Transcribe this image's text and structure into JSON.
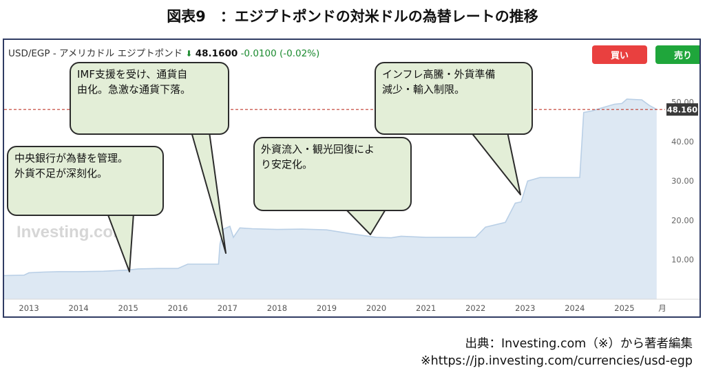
{
  "figure_title": "図表9　：エジプトポンドの対米ドルの為替レートの推移",
  "header": {
    "pair": "USD/EGP - アメリカドル エジプトポンド",
    "price": "48.1600",
    "change": "-0.0100 (-0.02%)",
    "direction": "down"
  },
  "buttons": {
    "buy": "買い",
    "sell": "売り"
  },
  "watermark": "Investing.com",
  "callouts": [
    {
      "text": "中央銀行が為替を管理。\n外貨不足が深刻化。"
    },
    {
      "text": "IMF支援を受け、通貨自\n由化。急激な通貨下落。"
    },
    {
      "text": "外資流入・観光回復によ\nり安定化。"
    },
    {
      "text": "インフレ高騰・外貨準備\n減少・輸入制限。"
    }
  ],
  "source": {
    "line1": "出典：Investing.com（※）から著者編集",
    "line2": "※https://jp.investing.com/currencies/usd-egp"
  },
  "colors": {
    "area_fill": "#dde8f3",
    "line": "#b9cfe6",
    "ref_line": "#c0392b",
    "buy": "#e9403f",
    "sell": "#1fa63b"
  },
  "chart_data": {
    "type": "area",
    "title": "USD/EGP - アメリカドル エジプトポンド",
    "xlabel": "月",
    "ylabel": "",
    "x_ticks": [
      "2013",
      "2014",
      "2015",
      "2016",
      "2017",
      "2018",
      "2019",
      "2020",
      "2021",
      "2022",
      "2023",
      "2024",
      "2025"
    ],
    "y_ticks": [
      "10.00",
      "20.00",
      "30.00",
      "40.00",
      "50.00"
    ],
    "ylim": [
      0,
      55
    ],
    "xlim": [
      2012.5,
      2025.75
    ],
    "last_value": 48.16,
    "last_label": "48.160",
    "grid": false,
    "series": [
      {
        "values": [
          [
            2012.5,
            6.0
          ],
          [
            2012.9,
            6.1
          ],
          [
            2013.0,
            6.7
          ],
          [
            2013.3,
            6.9
          ],
          [
            2013.6,
            7.0
          ],
          [
            2014.0,
            7.0
          ],
          [
            2014.5,
            7.1
          ],
          [
            2015.0,
            7.4
          ],
          [
            2015.2,
            7.7
          ],
          [
            2015.6,
            7.8
          ],
          [
            2016.0,
            7.8
          ],
          [
            2016.2,
            8.9
          ],
          [
            2016.6,
            8.9
          ],
          [
            2016.82,
            8.9
          ],
          [
            2016.85,
            14.0
          ],
          [
            2016.92,
            17.8
          ],
          [
            2017.05,
            18.5
          ],
          [
            2017.12,
            15.7
          ],
          [
            2017.25,
            18.1
          ],
          [
            2017.5,
            17.9
          ],
          [
            2018.0,
            17.7
          ],
          [
            2018.5,
            17.8
          ],
          [
            2019.0,
            17.6
          ],
          [
            2019.5,
            16.6
          ],
          [
            2020.0,
            15.7
          ],
          [
            2020.3,
            15.6
          ],
          [
            2020.5,
            16.0
          ],
          [
            2021.0,
            15.7
          ],
          [
            2021.5,
            15.7
          ],
          [
            2022.0,
            15.7
          ],
          [
            2022.2,
            18.3
          ],
          [
            2022.6,
            19.5
          ],
          [
            2022.8,
            24.4
          ],
          [
            2022.92,
            24.7
          ],
          [
            2023.05,
            30.0
          ],
          [
            2023.3,
            30.9
          ],
          [
            2023.7,
            30.9
          ],
          [
            2024.1,
            30.9
          ],
          [
            2024.18,
            47.4
          ],
          [
            2024.35,
            47.8
          ],
          [
            2024.5,
            48.4
          ],
          [
            2024.8,
            49.5
          ],
          [
            2024.95,
            49.7
          ],
          [
            2025.05,
            50.8
          ],
          [
            2025.35,
            50.6
          ],
          [
            2025.5,
            49.2
          ],
          [
            2025.65,
            48.2
          ]
        ]
      }
    ],
    "reference_line": 48.16
  }
}
